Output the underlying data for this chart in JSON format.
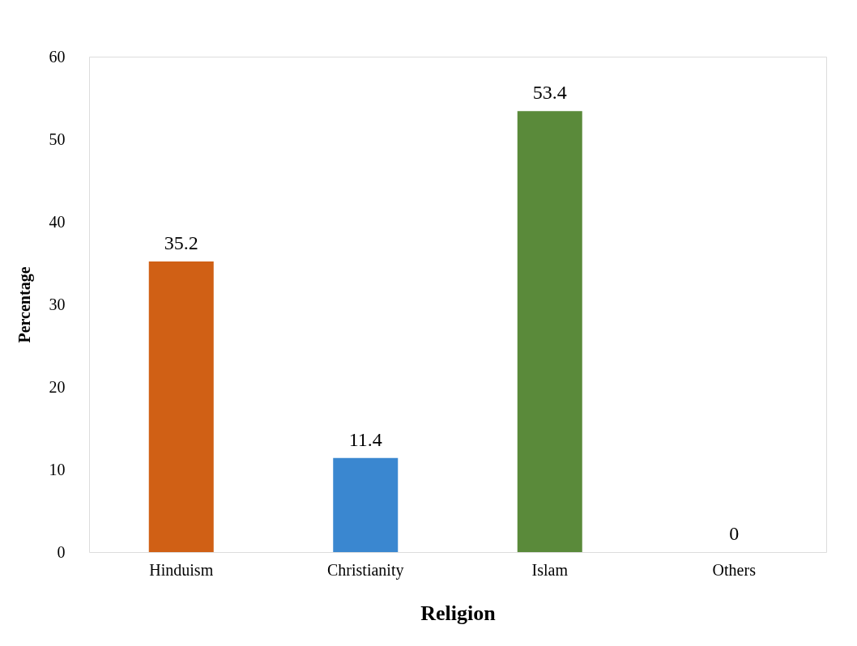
{
  "chart_data": {
    "type": "bar",
    "xlabel": "Religion",
    "ylabel": "Percentage",
    "categories": [
      "Hinduism",
      "Christianity",
      "Islam",
      "Others"
    ],
    "values": [
      35.2,
      11.4,
      53.4,
      0
    ],
    "colors": [
      "#d06015",
      "#3a87d0",
      "#5a8a3a",
      "#6e9e3c"
    ],
    "ylim": [
      0,
      60
    ],
    "yticks": [
      0,
      10,
      20,
      30,
      40,
      50,
      60
    ],
    "grid": false,
    "data_labels": true
  }
}
